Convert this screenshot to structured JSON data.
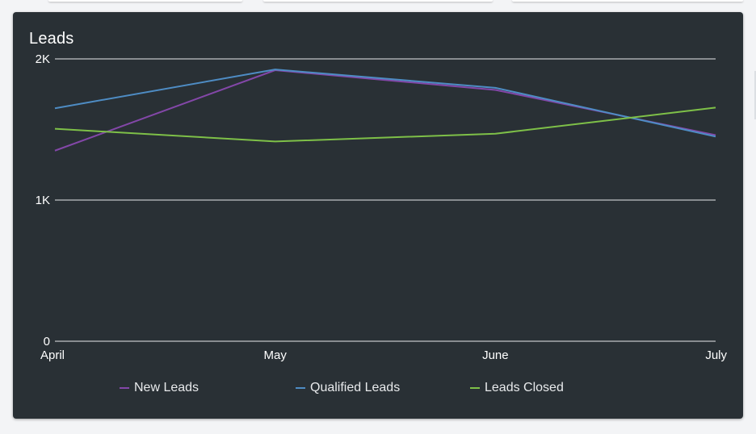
{
  "card": {
    "title": "Leads"
  },
  "chart_data": {
    "type": "line",
    "title": "Leads",
    "categories": [
      "April",
      "May",
      "June",
      "July"
    ],
    "ylim": [
      0,
      2000
    ],
    "yticks": [
      0,
      1000,
      2000
    ],
    "ytick_labels": [
      "0",
      "1K",
      "2K"
    ],
    "grid": true,
    "legend_position": "bottom",
    "series": [
      {
        "name": "New Leads",
        "values": [
          1350,
          1920,
          1780,
          1460
        ],
        "color": "#8347a8"
      },
      {
        "name": "Qualified Leads",
        "values": [
          1650,
          1925,
          1795,
          1450
        ],
        "color": "#4e8cc4"
      },
      {
        "name": "Leads Closed",
        "values": [
          1505,
          1415,
          1470,
          1655
        ],
        "color": "#7ec048"
      }
    ]
  }
}
